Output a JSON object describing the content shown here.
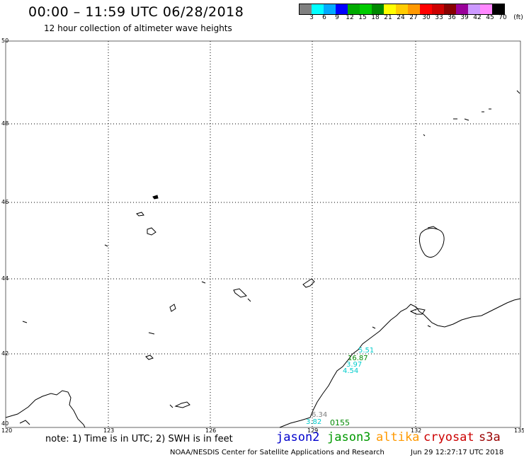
{
  "header": {
    "title": "00:00 – 11:59 UTC 06/28/2018",
    "subtitle": "12 hour collection of altimeter wave heights"
  },
  "legend": {
    "unit": "(ft)",
    "colors": [
      "#808080",
      "#00ffff",
      "#00aaff",
      "#0000ff",
      "#00aa00",
      "#00cc00",
      "#008800",
      "#ffff00",
      "#ffcc00",
      "#ff9900",
      "#ff0000",
      "#cc0000",
      "#880000",
      "#990099",
      "#cc99ff",
      "#ff88ff",
      "#000000"
    ],
    "labels": [
      "3",
      "6",
      "9",
      "12",
      "15",
      "18",
      "21",
      "24",
      "27",
      "30",
      "33",
      "36",
      "39",
      "42",
      "45",
      "70"
    ]
  },
  "map": {
    "lat_labels": [
      "50",
      "48",
      "46",
      "44",
      "42",
      "40"
    ],
    "lon_labels": [
      "120",
      "123",
      "126",
      "129",
      "132",
      "135"
    ],
    "wave_readings": [
      {
        "text": "5.51",
        "color": "#00cccc"
      },
      {
        "text": "16.87",
        "color": "#008800"
      },
      {
        "text": "3.97",
        "color": "#00cccc"
      },
      {
        "text": "4.54",
        "color": "#00cccc"
      },
      {
        "text": "6.34",
        "color": "#808080"
      },
      {
        "text": "3.82",
        "color": "#00cccc"
      },
      {
        "text": "0155",
        "color": "#008800"
      }
    ]
  },
  "footer": {
    "note": "note: 1) Time is in UTC; 2) SWH is in feet",
    "satellites": [
      {
        "name": "jason2",
        "color": "#0000cc"
      },
      {
        "name": "jason3",
        "color": "#009900"
      },
      {
        "name": "altika",
        "color": "#ff9900"
      },
      {
        "name": "cryosat",
        "color": "#cc0000"
      },
      {
        "name": "s3a",
        "color": "#990000"
      }
    ],
    "credit": "NOAA/NESDIS Center for Satellite Applications and Research",
    "timestamp": "Jun 29 12:27:17 UTC 2018"
  }
}
